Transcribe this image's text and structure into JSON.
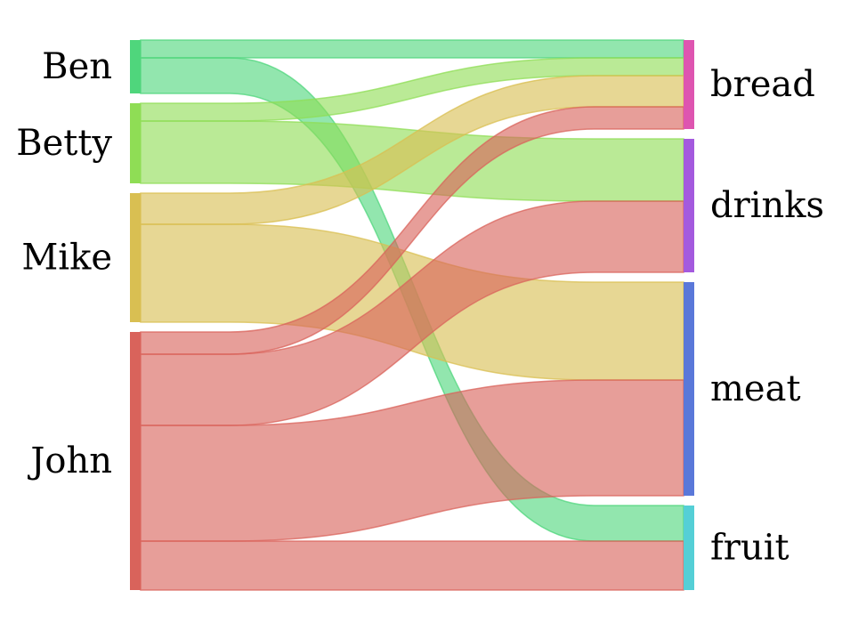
{
  "chart_data": {
    "type": "sankey",
    "title": "",
    "sources": [
      {
        "id": "Ben",
        "label": "Ben",
        "color": "#4fd67c"
      },
      {
        "id": "Betty",
        "label": "Betty",
        "color": "#8fdd55"
      },
      {
        "id": "Mike",
        "label": "Mike",
        "color": "#d9bf52"
      },
      {
        "id": "John",
        "label": "John",
        "color": "#d9635b"
      }
    ],
    "targets": [
      {
        "id": "bread",
        "label": "bread",
        "color": "#de55b0"
      },
      {
        "id": "drinks",
        "label": "drinks",
        "color": "#a45ade"
      },
      {
        "id": "meat",
        "label": "meat",
        "color": "#5a78d9"
      },
      {
        "id": "fruit",
        "label": "fruit",
        "color": "#55cfd6"
      }
    ],
    "flows": [
      {
        "source": "Ben",
        "target": "bread",
        "value": 2
      },
      {
        "source": "Ben",
        "target": "fruit",
        "value": 4
      },
      {
        "source": "Betty",
        "target": "bread",
        "value": 2
      },
      {
        "source": "Betty",
        "target": "drinks",
        "value": 7
      },
      {
        "source": "Mike",
        "target": "bread",
        "value": 3.5
      },
      {
        "source": "Mike",
        "target": "meat",
        "value": 11
      },
      {
        "source": "John",
        "target": "bread",
        "value": 2.5
      },
      {
        "source": "John",
        "target": "drinks",
        "value": 8
      },
      {
        "source": "John",
        "target": "meat",
        "value": 13
      },
      {
        "source": "John",
        "target": "fruit",
        "value": 5.5
      }
    ]
  }
}
